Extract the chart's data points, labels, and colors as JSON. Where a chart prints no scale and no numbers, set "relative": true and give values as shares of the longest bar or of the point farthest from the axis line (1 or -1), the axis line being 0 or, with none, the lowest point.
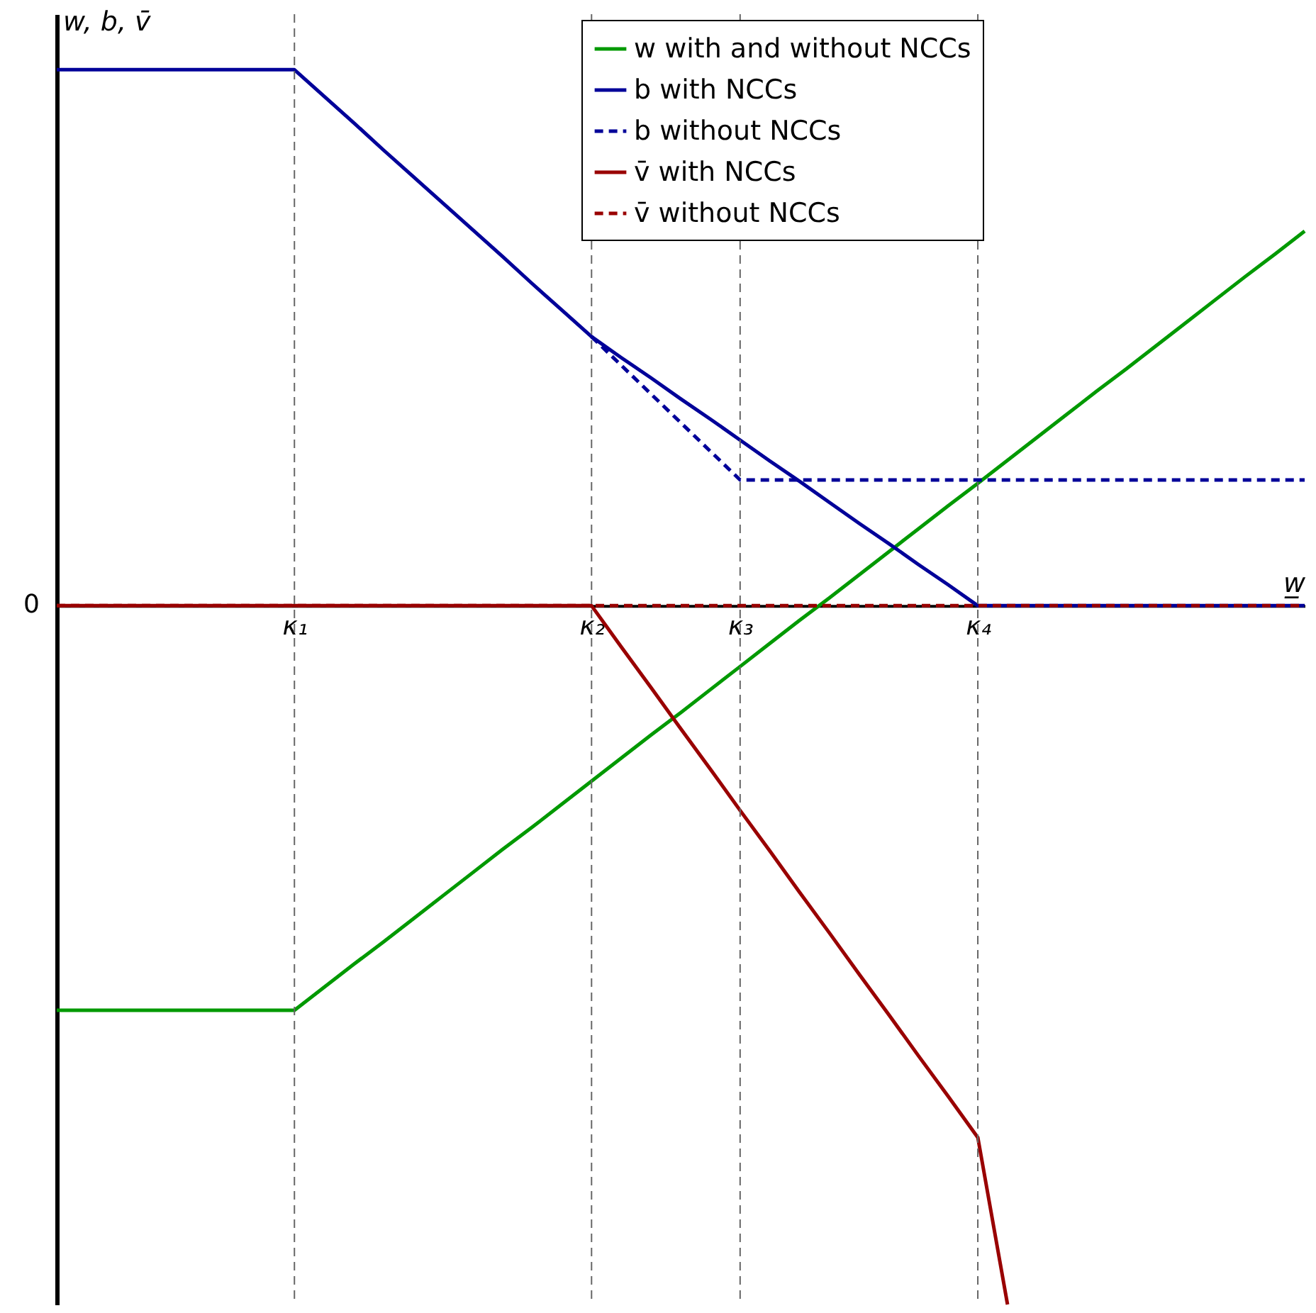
{
  "chart_data": {
    "type": "line",
    "relative": true,
    "ylabel": "w, b, v̄",
    "xlabel": "w̲",
    "categories": [
      null,
      null,
      null,
      null,
      null,
      null,
      null,
      null,
      "κ₁",
      null,
      null,
      null,
      null,
      null,
      null,
      null,
      null,
      null,
      "κ₂",
      null,
      null,
      null,
      null,
      "κ₃",
      null,
      null,
      null,
      null,
      null,
      null,
      null,
      "κ₄",
      null,
      null,
      null,
      null,
      null,
      null,
      null,
      null,
      null,
      null,
      null
    ],
    "legend": "top",
    "grid": false,
    "marker": "none",
    "annotations": [
      "0"
    ],
    "ref_lines": [
      {
        "axis": "x",
        "value": "κ₁",
        "label": null,
        "color": "#666666",
        "line_style": "dashed"
      },
      {
        "axis": "x",
        "value": "κ₂",
        "label": null,
        "color": "#666666",
        "line_style": "dashed"
      },
      {
        "axis": "x",
        "value": "κ₃",
        "label": null,
        "color": "#666666",
        "line_style": "dashed"
      },
      {
        "axis": "x",
        "value": "κ₄",
        "label": null,
        "color": "#666666",
        "line_style": "dashed"
      }
    ],
    "series": [
      {
        "name": "w with and without NCCs",
        "color": "#009900",
        "line_style": "solid",
        "values": [
          -0.579,
          -0.579,
          -0.579,
          -0.579,
          -0.579,
          -0.579,
          -0.579,
          -0.579,
          -0.579,
          -0.546,
          -0.513,
          -0.481,
          -0.448,
          -0.415,
          -0.382,
          -0.349,
          -0.317,
          -0.284,
          -0.251,
          -0.218,
          -0.185,
          -0.153,
          -0.12,
          -0.087,
          -0.054,
          -0.021,
          0.011,
          0.044,
          0.077,
          0.11,
          0.143,
          0.175,
          0.208,
          0.241,
          0.274,
          0.307,
          0.339,
          0.372,
          0.405,
          0.438,
          0.471,
          0.503,
          0.536
        ]
      },
      {
        "name": "b with NCCs",
        "color": "#000099",
        "line_style": "solid",
        "values": [
          0.767,
          0.767,
          0.767,
          0.767,
          0.767,
          0.767,
          0.767,
          0.767,
          0.767,
          0.729,
          0.691,
          0.652,
          0.614,
          0.576,
          0.538,
          0.5,
          0.461,
          0.423,
          0.385,
          0.355,
          0.326,
          0.296,
          0.267,
          0.237,
          0.207,
          0.178,
          0.148,
          0.118,
          0.089,
          0.059,
          0.03,
          0,
          0,
          0,
          0,
          0,
          0,
          0,
          0,
          0,
          0,
          0,
          0
        ]
      },
      {
        "name": "b without NCCs",
        "color": "#000099",
        "line_style": "dashed",
        "values": [
          null,
          null,
          null,
          null,
          null,
          null,
          null,
          null,
          null,
          null,
          null,
          null,
          null,
          null,
          null,
          null,
          null,
          null,
          0.385,
          0.344,
          0.303,
          0.262,
          0.221,
          0.18,
          0.18,
          0.18,
          0.18,
          0.18,
          0.18,
          0.18,
          0.18,
          0.18,
          0.18,
          0.18,
          0.18,
          0.18,
          0.18,
          0.18,
          0.18,
          0.18,
          0.18,
          0.18,
          0.18
        ]
      },
      {
        "name": "v̄ with NCCs",
        "color": "#990000",
        "line_style": "solid",
        "values": [
          0,
          0,
          0,
          0,
          0,
          0,
          0,
          0,
          0,
          0,
          0,
          0,
          0,
          0,
          0,
          0,
          0,
          0,
          0,
          -0.059,
          -0.117,
          -0.176,
          -0.234,
          -0.293,
          -0.351,
          -0.41,
          -0.468,
          -0.527,
          -0.585,
          -0.644,
          -0.702,
          -0.761,
          -1,
          null,
          null,
          null,
          null,
          null,
          null,
          null,
          null,
          null,
          null
        ]
      },
      {
        "name": "v̄ without NCCs",
        "color": "#990000",
        "line_style": "dashed",
        "values": [
          0,
          0,
          0,
          0,
          0,
          0,
          0,
          0,
          0,
          0,
          0,
          0,
          0,
          0,
          0,
          0,
          0,
          0,
          0,
          0,
          0,
          0,
          0,
          0,
          0,
          0,
          0,
          0,
          0,
          0,
          0,
          0,
          0,
          0,
          0,
          0,
          0,
          0,
          0,
          0,
          0,
          0,
          0
        ]
      }
    ]
  }
}
